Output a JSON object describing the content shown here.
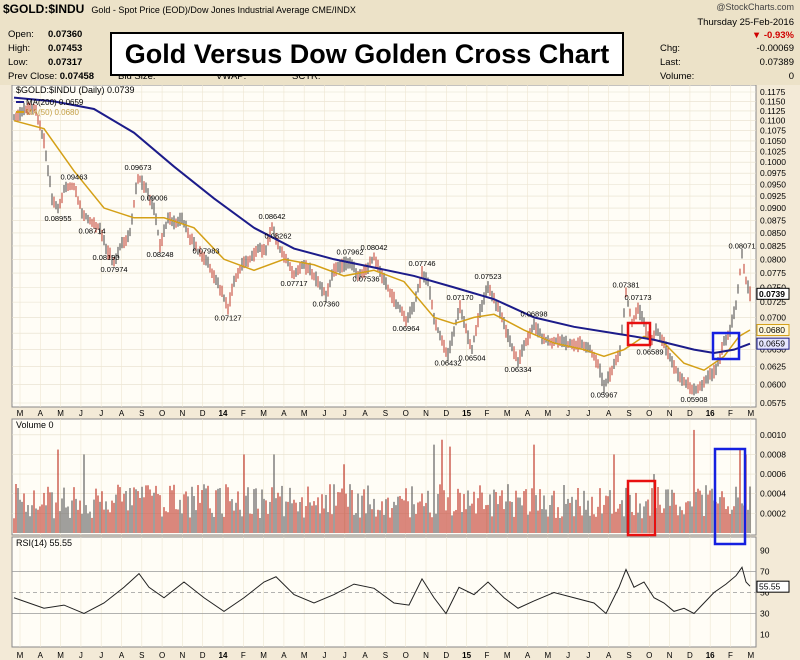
{
  "header": {
    "symbol": "$GOLD:$INDU",
    "description": "Gold - Spot Price (EOD)/Dow Jones Industrial Average  CME/INDX",
    "source": "@StockCharts.com",
    "open_label": "Open:",
    "open": "0.07360",
    "high_label": "High:",
    "high": "0.07453",
    "low_label": "Low:",
    "low": "0.07317",
    "prev_close_label": "Prev Close:",
    "prev_close": "0.07458",
    "bid_label": "Bid Size:",
    "vwap_label": "VWAP:",
    "sctr_label": "SCTR:",
    "date": "Thursday  25-Feb-2016",
    "change_pct": "-0.93%",
    "chg_label": "Chg:",
    "chg": "-0.00069",
    "last_label": "Last:",
    "last": "0.07389",
    "volume_label": "Volume:",
    "volume": "0",
    "title": "Gold Versus Dow Golden Cross Chart"
  },
  "legend": {
    "main": "$GOLD:$INDU (Daily) 0.0739",
    "ma200": "MA(200) 0.0659",
    "ma50": "MA(50) 0.0680",
    "volume": "Volume 0",
    "rsi": "RSI(14) 55.55"
  },
  "colors": {
    "price": "#c0392b",
    "price_up": "#444444",
    "ma200": "#1c1c8a",
    "ma50": "#d4a017",
    "vol_red": "#c0392b",
    "vol_grey": "#606060",
    "box_red": "#e81010",
    "box_blue": "#1520e0",
    "last_badge": "#000000",
    "ma50_badge": "#d4a017",
    "ma200_badge": "#1c1c8a"
  },
  "chart_data": [
    {
      "type": "line",
      "name": "price",
      "y_axis_ticks": [
        "0.1175",
        "0.1150",
        "0.1125",
        "0.1100",
        "0.1075",
        "0.1050",
        "0.1025",
        "0.1000",
        "0.0975",
        "0.0950",
        "0.0925",
        "0.0900",
        "0.0875",
        "0.0850",
        "0.0825",
        "0.0800",
        "0.0775",
        "0.0750",
        "0.0725",
        "0.0700",
        "0.0675",
        "0.0650",
        "0.0625",
        "0.0600",
        "0.0575"
      ],
      "ylim": [
        0.0575,
        0.1175
      ],
      "y_scale": "log",
      "x_ticks": [
        "M",
        "A",
        "M",
        "J",
        "J",
        "A",
        "S",
        "O",
        "N",
        "D",
        "14",
        "F",
        "M",
        "A",
        "M",
        "J",
        "J",
        "A",
        "S",
        "O",
        "N",
        "D",
        "15",
        "F",
        "M",
        "A",
        "M",
        "J",
        "J",
        "A",
        "S",
        "O",
        "N",
        "D",
        "16",
        "F",
        "M"
      ],
      "right_badges": [
        "0.0739",
        "0.0680",
        "0.0659"
      ],
      "annotations": [
        "0.09463",
        "0.09673",
        "0.08955",
        "0.09006",
        "0.08714",
        "0.08190",
        "0.08248",
        "0.07974",
        "0.07983",
        "0.08642",
        "0.08262",
        "0.07127",
        "0.07717",
        "0.07962",
        "0.08042",
        "0.07746",
        "0.07360",
        "0.07536",
        "0.06964",
        "0.07523",
        "0.07170",
        "0.06432",
        "0.06504",
        "0.06898",
        "0.06334",
        "0.07381",
        "0.07173",
        "0.06589",
        "0.05967",
        "0.05908",
        "0.08071"
      ],
      "price": [
        [
          0,
          0.111
        ],
        [
          12,
          0.113
        ],
        [
          22,
          0.1125
        ],
        [
          30,
          0.105
        ],
        [
          38,
          0.092
        ],
        [
          44,
          0.0896
        ],
        [
          50,
          0.094
        ],
        [
          60,
          0.0946
        ],
        [
          68,
          0.089
        ],
        [
          78,
          0.0871
        ],
        [
          86,
          0.086
        ],
        [
          92,
          0.0819
        ],
        [
          100,
          0.0797
        ],
        [
          108,
          0.083
        ],
        [
          116,
          0.085
        ],
        [
          124,
          0.0967
        ],
        [
          132,
          0.094
        ],
        [
          140,
          0.0901
        ],
        [
          146,
          0.0825
        ],
        [
          154,
          0.088
        ],
        [
          160,
          0.087
        ],
        [
          168,
          0.088
        ],
        [
          176,
          0.084
        ],
        [
          184,
          0.0815
        ],
        [
          192,
          0.0798
        ],
        [
          200,
          0.077
        ],
        [
          208,
          0.074
        ],
        [
          214,
          0.0713
        ],
        [
          220,
          0.076
        ],
        [
          228,
          0.079
        ],
        [
          236,
          0.08
        ],
        [
          244,
          0.082
        ],
        [
          252,
          0.0815
        ],
        [
          258,
          0.0864
        ],
        [
          264,
          0.0826
        ],
        [
          272,
          0.08
        ],
        [
          280,
          0.0772
        ],
        [
          288,
          0.079
        ],
        [
          296,
          0.078
        ],
        [
          304,
          0.076
        ],
        [
          312,
          0.0736
        ],
        [
          320,
          0.078
        ],
        [
          328,
          0.079
        ],
        [
          336,
          0.0796
        ],
        [
          344,
          0.077
        ],
        [
          352,
          0.078
        ],
        [
          360,
          0.0804
        ],
        [
          368,
          0.077
        ],
        [
          376,
          0.074
        ],
        [
          384,
          0.072
        ],
        [
          392,
          0.0696
        ],
        [
          400,
          0.072
        ],
        [
          408,
          0.0775
        ],
        [
          414,
          0.076
        ],
        [
          420,
          0.07
        ],
        [
          428,
          0.066
        ],
        [
          434,
          0.0643
        ],
        [
          440,
          0.068
        ],
        [
          446,
          0.0717
        ],
        [
          452,
          0.068
        ],
        [
          458,
          0.065
        ],
        [
          466,
          0.071
        ],
        [
          474,
          0.0752
        ],
        [
          480,
          0.073
        ],
        [
          488,
          0.07
        ],
        [
          496,
          0.066
        ],
        [
          504,
          0.0633
        ],
        [
          512,
          0.066
        ],
        [
          520,
          0.069
        ],
        [
          528,
          0.067
        ],
        [
          536,
          0.066
        ],
        [
          544,
          0.0665
        ],
        [
          552,
          0.066
        ],
        [
          560,
          0.0655
        ],
        [
          568,
          0.066
        ],
        [
          576,
          0.065
        ],
        [
          584,
          0.063
        ],
        [
          590,
          0.0597
        ],
        [
          598,
          0.062
        ],
        [
          606,
          0.065
        ],
        [
          612,
          0.0738
        ],
        [
          618,
          0.069
        ],
        [
          624,
          0.0717
        ],
        [
          630,
          0.069
        ],
        [
          636,
          0.0659
        ],
        [
          642,
          0.068
        ],
        [
          650,
          0.066
        ],
        [
          658,
          0.063
        ],
        [
          666,
          0.061
        ],
        [
          674,
          0.06
        ],
        [
          680,
          0.0591
        ],
        [
          688,
          0.06
        ],
        [
          694,
          0.061
        ],
        [
          702,
          0.062
        ],
        [
          710,
          0.066
        ],
        [
          716,
          0.068
        ],
        [
          722,
          0.072
        ],
        [
          728,
          0.0807
        ],
        [
          732,
          0.076
        ],
        [
          736,
          0.0739
        ]
      ],
      "ma200": [
        [
          0,
          0.116
        ],
        [
          40,
          0.115
        ],
        [
          80,
          0.113
        ],
        [
          120,
          0.107
        ],
        [
          160,
          0.099
        ],
        [
          200,
          0.092
        ],
        [
          240,
          0.086
        ],
        [
          280,
          0.082
        ],
        [
          320,
          0.08
        ],
        [
          360,
          0.0785
        ],
        [
          400,
          0.077
        ],
        [
          440,
          0.075
        ],
        [
          480,
          0.073
        ],
        [
          520,
          0.07
        ],
        [
          560,
          0.0685
        ],
        [
          600,
          0.0675
        ],
        [
          640,
          0.0665
        ],
        [
          680,
          0.065
        ],
        [
          700,
          0.0645
        ],
        [
          720,
          0.065
        ],
        [
          736,
          0.0659
        ]
      ],
      "ma50": [
        [
          0,
          0.11
        ],
        [
          30,
          0.108
        ],
        [
          60,
          0.098
        ],
        [
          90,
          0.09
        ],
        [
          120,
          0.088
        ],
        [
          150,
          0.088
        ],
        [
          180,
          0.086
        ],
        [
          210,
          0.08
        ],
        [
          240,
          0.078
        ],
        [
          270,
          0.08
        ],
        [
          300,
          0.079
        ],
        [
          330,
          0.077
        ],
        [
          360,
          0.078
        ],
        [
          390,
          0.076
        ],
        [
          420,
          0.07
        ],
        [
          440,
          0.069
        ],
        [
          460,
          0.07
        ],
        [
          480,
          0.0705
        ],
        [
          510,
          0.068
        ],
        [
          540,
          0.066
        ],
        [
          570,
          0.065
        ],
        [
          590,
          0.064
        ],
        [
          610,
          0.065
        ],
        [
          630,
          0.067
        ],
        [
          650,
          0.066
        ],
        [
          670,
          0.063
        ],
        [
          690,
          0.062
        ],
        [
          710,
          0.064
        ],
        [
          725,
          0.067
        ],
        [
          736,
          0.068
        ]
      ]
    },
    {
      "type": "bar",
      "name": "volume",
      "y_axis_ticks": [
        "0.0010",
        "0.0008",
        "0.0006",
        "0.0004",
        "0.0002"
      ],
      "ylim": [
        0,
        0.0011
      ],
      "peaks": [
        [
          44,
          0.00085
        ],
        [
          70,
          0.0008
        ],
        [
          230,
          0.0008
        ],
        [
          260,
          0.0008
        ],
        [
          330,
          0.0007
        ],
        [
          420,
          0.0009
        ],
        [
          428,
          0.00095
        ],
        [
          436,
          0.00088
        ],
        [
          520,
          0.0009
        ],
        [
          600,
          0.0008
        ],
        [
          640,
          0.0006
        ],
        [
          680,
          0.00105
        ],
        [
          726,
          0.00085
        ],
        [
          732,
          0.0008
        ]
      ]
    },
    {
      "type": "line",
      "name": "rsi",
      "y_axis_ticks": [
        "90",
        "70",
        "50",
        "30",
        "10"
      ],
      "ylim": [
        0,
        100
      ],
      "last": 55.55,
      "points": [
        [
          0,
          45
        ],
        [
          15,
          40
        ],
        [
          30,
          35
        ],
        [
          50,
          38
        ],
        [
          70,
          30
        ],
        [
          90,
          40
        ],
        [
          110,
          55
        ],
        [
          125,
          68
        ],
        [
          135,
          55
        ],
        [
          150,
          45
        ],
        [
          170,
          60
        ],
        [
          190,
          45
        ],
        [
          210,
          32
        ],
        [
          230,
          45
        ],
        [
          250,
          60
        ],
        [
          262,
          65
        ],
        [
          280,
          48
        ],
        [
          300,
          40
        ],
        [
          320,
          48
        ],
        [
          340,
          58
        ],
        [
          360,
          54
        ],
        [
          380,
          40
        ],
        [
          395,
          38
        ],
        [
          408,
          63
        ],
        [
          420,
          45
        ],
        [
          432,
          30
        ],
        [
          445,
          55
        ],
        [
          460,
          48
        ],
        [
          474,
          60
        ],
        [
          490,
          45
        ],
        [
          504,
          35
        ],
        [
          520,
          42
        ],
        [
          540,
          50
        ],
        [
          560,
          45
        ],
        [
          580,
          40
        ],
        [
          592,
          30
        ],
        [
          605,
          55
        ],
        [
          612,
          72
        ],
        [
          620,
          55
        ],
        [
          630,
          60
        ],
        [
          640,
          45
        ],
        [
          650,
          40
        ],
        [
          660,
          32
        ],
        [
          670,
          35
        ],
        [
          680,
          30
        ],
        [
          690,
          40
        ],
        [
          700,
          50
        ],
        [
          712,
          58
        ],
        [
          722,
          66
        ],
        [
          728,
          74
        ],
        [
          732,
          60
        ],
        [
          736,
          56
        ]
      ]
    }
  ]
}
